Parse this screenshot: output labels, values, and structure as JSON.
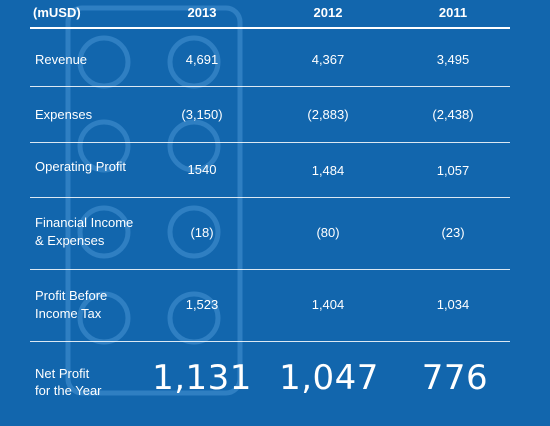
{
  "header": {
    "unit_label": "(mUSD)",
    "years": [
      "2013",
      "2012",
      "2011"
    ]
  },
  "rows": [
    {
      "label": "Revenue",
      "values": [
        "4,691",
        "4,367",
        "3,495"
      ]
    },
    {
      "label": "Expenses",
      "values": [
        "(3,150)",
        "(2,883)",
        "(2,438)"
      ]
    },
    {
      "label": "Operating Profit",
      "values": [
        "1540",
        "1,484",
        "1,057"
      ]
    },
    {
      "label": "Financial Income\n& Expenses",
      "values": [
        "(18)",
        "(80)",
        "(23)"
      ]
    },
    {
      "label": "Profit Before\nIncome Tax",
      "values": [
        "1,523",
        "1,404",
        "1,034"
      ]
    }
  ],
  "net_profit": {
    "label": "Net Profit\nfor the Year",
    "values": [
      "1,131",
      "1,047",
      "776"
    ]
  },
  "colors": {
    "background": "#1266ad",
    "watermark": "#2d7cc0",
    "text": "#ffffff"
  }
}
